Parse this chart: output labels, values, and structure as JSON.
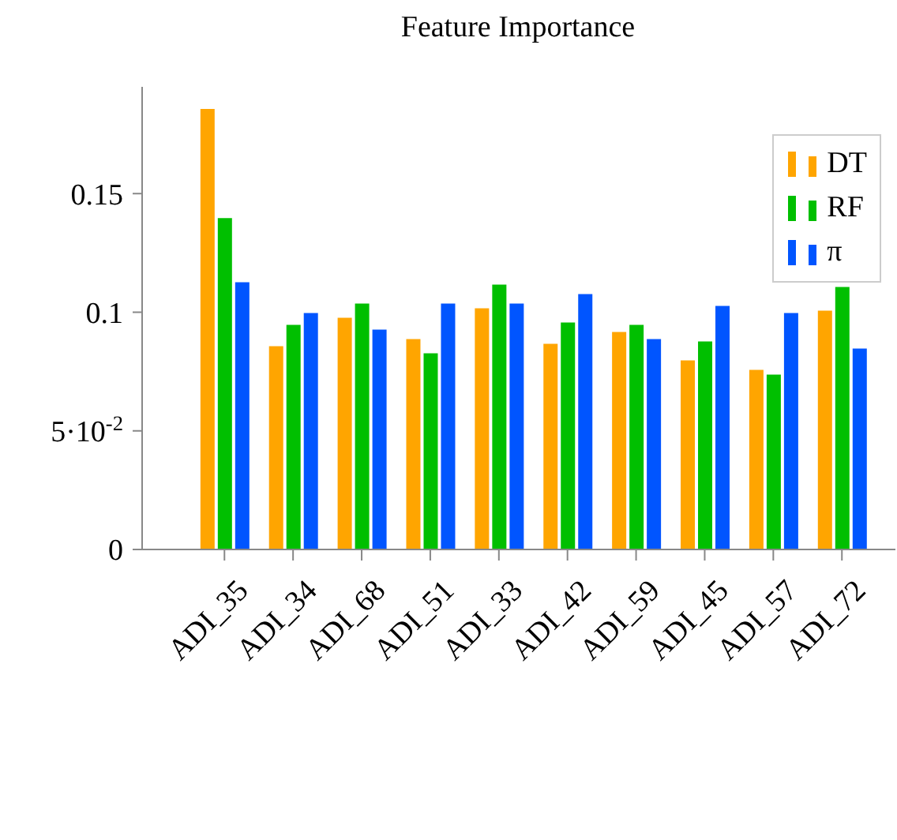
{
  "chart_data": {
    "type": "bar",
    "title": "Feature Importance",
    "categories": [
      "ADI_35",
      "ADI_34",
      "ADI_68",
      "ADI_51",
      "ADI_33",
      "ADI_42",
      "ADI_59",
      "ADI_45",
      "ADI_57",
      "ADI_72"
    ],
    "series": [
      {
        "name": "DT",
        "color": "#ffa500",
        "values": [
          0.186,
          0.086,
          0.098,
          0.089,
          0.102,
          0.087,
          0.092,
          0.08,
          0.076,
          0.101
        ]
      },
      {
        "name": "RF",
        "color": "#00bf00",
        "values": [
          0.14,
          0.095,
          0.104,
          0.083,
          0.112,
          0.096,
          0.095,
          0.088,
          0.074,
          0.111
        ]
      },
      {
        "name": "π",
        "color": "#0055ff",
        "values": [
          0.113,
          0.1,
          0.093,
          0.104,
          0.104,
          0.108,
          0.089,
          0.103,
          0.1,
          0.085
        ]
      }
    ],
    "ylim": [
      0,
      0.195
    ],
    "yticks": [
      0,
      {
        "value": 0.05,
        "label": "5·10$^{-2}$"
      },
      0.1,
      0.15
    ],
    "grid": false,
    "legend": "top right"
  }
}
